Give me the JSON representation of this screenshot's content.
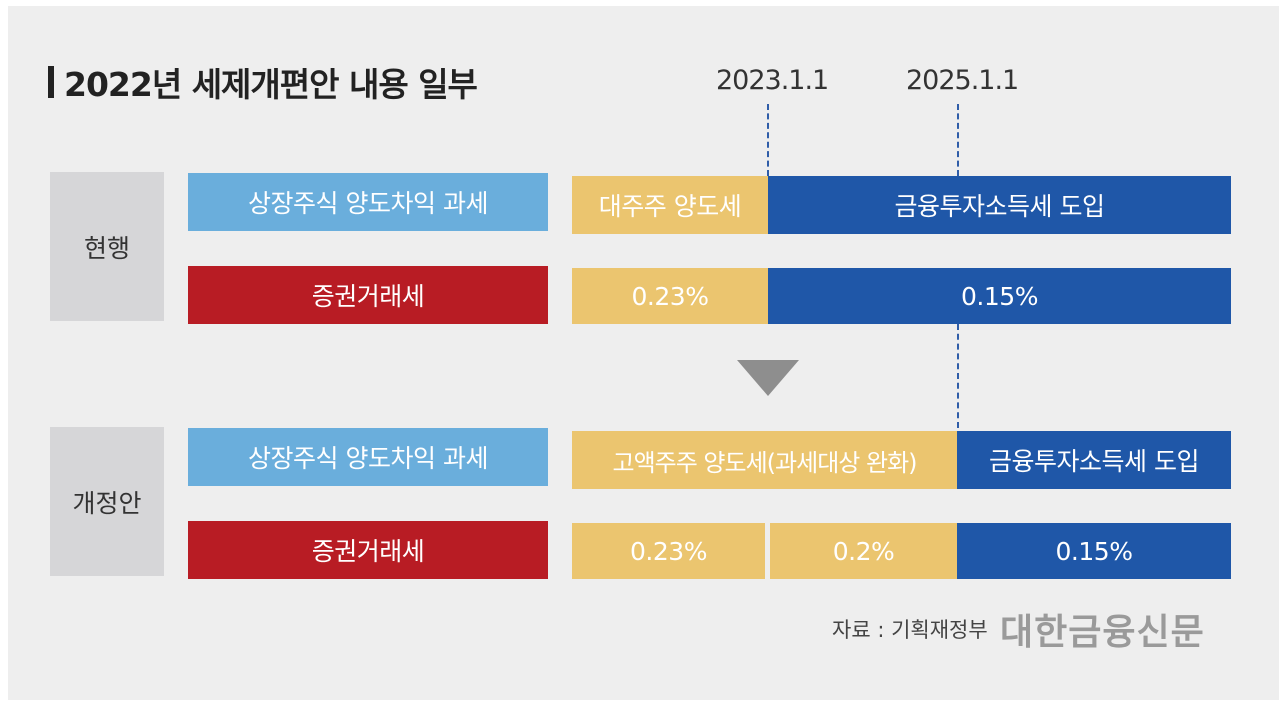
{
  "title": "2022년 세제개편안 내용 일부",
  "dates": {
    "d1": "2023.1.1",
    "d2": "2025.1.1"
  },
  "current": {
    "label": "현행",
    "row1": {
      "category": "상장주식 양도차익 과세",
      "seg1": "대주주 양도세",
      "seg2": "금융투자소득세 도입"
    },
    "row2": {
      "category": "증권거래세",
      "seg1": "0.23%",
      "seg2": "0.15%"
    }
  },
  "proposal": {
    "label": "개정안",
    "row1": {
      "category": "상장주식 양도차익 과세",
      "seg1": "고액주주 양도세(과세대상 완화)",
      "seg2": "금융투자소득세 도입"
    },
    "row2": {
      "category": "증권거래세",
      "seg1": "0.23%",
      "seg2": "0.2%",
      "seg3": "0.15%"
    }
  },
  "source": "자료 : 기획재정부",
  "logo": "대한금융신문",
  "colors": {
    "category_light": "#6aaedc",
    "category_red": "#b81c24",
    "gold": "#ebc56f",
    "blue": "#1f57a8",
    "side_label": "#d6d6d8",
    "arrow": "#8e8e8e"
  },
  "icons": {
    "title_marker": "vertical-bar",
    "transition": "down-triangle"
  }
}
